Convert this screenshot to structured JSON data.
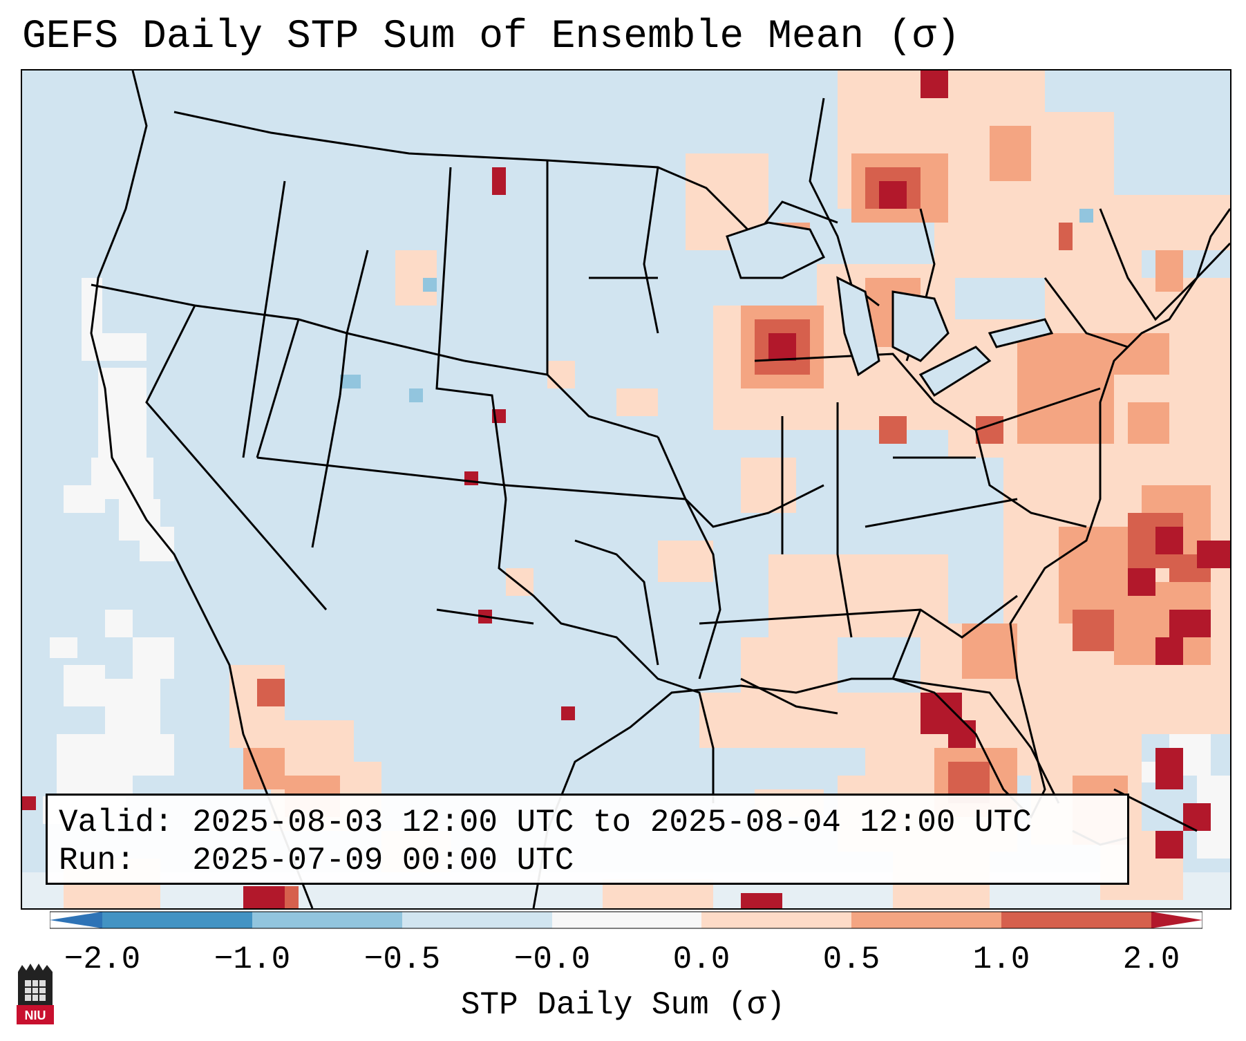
{
  "title": "GEFS Daily STP Sum of Ensemble Mean (σ)",
  "info": {
    "valid_label": "Valid:",
    "valid_value": "2025-08-03 12:00 UTC to 2025-08-04 12:00 UTC",
    "run_label": "Run:",
    "run_value": "2025-07-09 00:00 UTC"
  },
  "colorbar": {
    "label": "STP Daily Sum (σ)",
    "ticks": [
      "−2.0",
      "−1.0",
      "−0.5",
      "−0.0",
      "0.0",
      "0.5",
      "1.0",
      "2.0"
    ],
    "colors": [
      "#2e73b6",
      "#4393c3",
      "#92c5de",
      "#d1e5f0",
      "#f7f7f7",
      "#fddbc7",
      "#f4a582",
      "#d6604d",
      "#b2182b"
    ]
  },
  "logo_text": "NIU",
  "colors": {
    "ocean_background": "#d1e4f0",
    "near_zero": "#f7f7f7",
    "light_positive": "#fddbc7",
    "moderate_positive": "#f4a582",
    "strong_positive": "#d6604d",
    "max_positive": "#b2182b",
    "light_negative": "#92c5de"
  }
}
